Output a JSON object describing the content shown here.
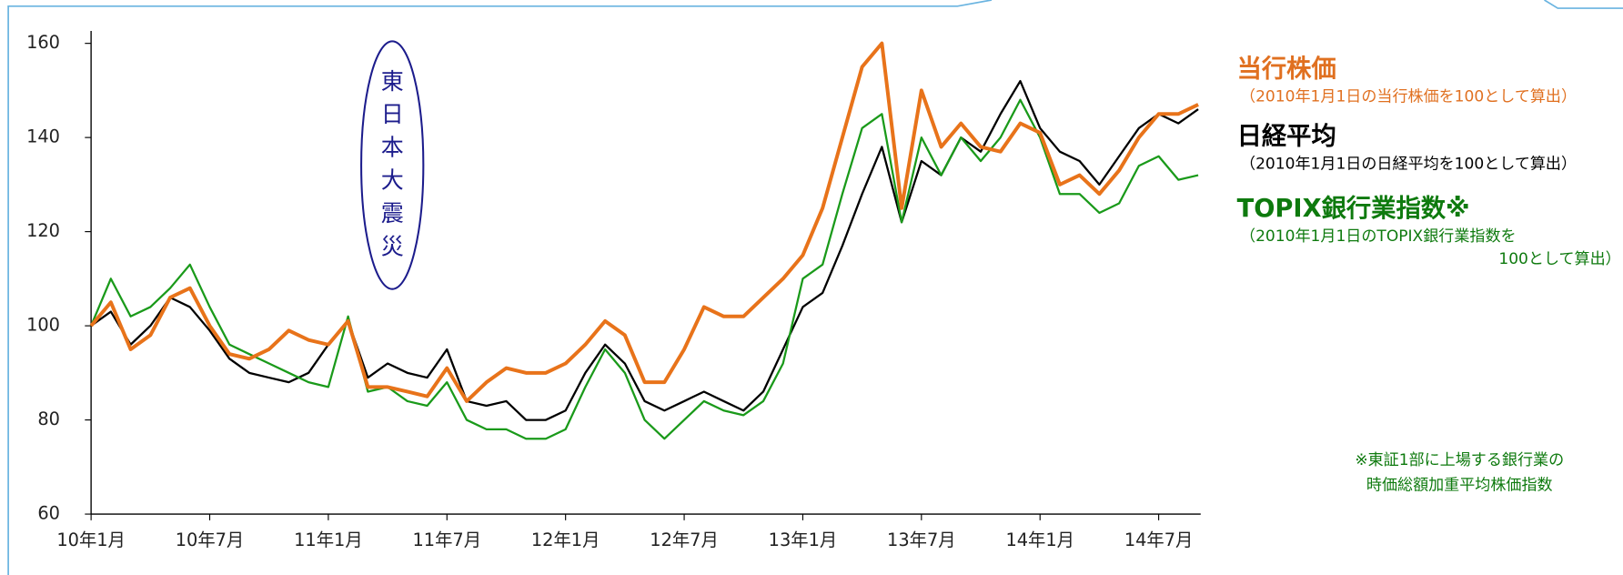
{
  "chart_data": {
    "type": "line",
    "categories": [
      "10年1月",
      null,
      null,
      null,
      null,
      null,
      "10年7月",
      null,
      null,
      null,
      null,
      null,
      "11年1月",
      null,
      null,
      null,
      null,
      null,
      "11年7月",
      null,
      null,
      null,
      null,
      null,
      "12年1月",
      null,
      null,
      null,
      null,
      null,
      "12年7月",
      null,
      null,
      null,
      null,
      null,
      "13年1月",
      null,
      null,
      null,
      null,
      null,
      "13年7月",
      null,
      null,
      null,
      null,
      null,
      "14年1月",
      null,
      null,
      null,
      null,
      null,
      "14年7月",
      null,
      null
    ],
    "ylim": [
      60,
      165
    ],
    "yticks": [
      60,
      80,
      100,
      120,
      140,
      160
    ],
    "series": [
      {
        "name": "当行株価",
        "color": "#e8731a",
        "note": [
          "（2010年1月1日の当行株価を100として算出）"
        ],
        "values": [
          100,
          105,
          95,
          98,
          106,
          108,
          100,
          94,
          93,
          95,
          99,
          97,
          96,
          101,
          87,
          87,
          86,
          85,
          91,
          84,
          88,
          91,
          90,
          90,
          92,
          96,
          101,
          98,
          88,
          88,
          95,
          104,
          102,
          102,
          106,
          110,
          115,
          125,
          140,
          155,
          160,
          125,
          150,
          138,
          143,
          138,
          137,
          143,
          141,
          130,
          132,
          128,
          133,
          140,
          145,
          145,
          147
        ]
      },
      {
        "name": "日経平均",
        "color": "#000000",
        "note": [
          "（2010年1月1日の日経平均を100として算出）"
        ],
        "values": [
          100,
          103,
          96,
          100,
          106,
          104,
          99,
          93,
          90,
          89,
          88,
          90,
          96,
          101,
          89,
          92,
          90,
          89,
          95,
          84,
          83,
          84,
          80,
          80,
          82,
          90,
          96,
          92,
          84,
          82,
          84,
          86,
          84,
          82,
          86,
          95,
          104,
          107,
          117,
          128,
          138,
          122,
          135,
          132,
          140,
          137,
          145,
          152,
          142,
          137,
          135,
          130,
          136,
          142,
          145,
          143,
          146
        ]
      },
      {
        "name": "TOPIX銀行業指数※",
        "color": "#1a9a1a",
        "note": [
          "（2010年1月1日のTOPIX銀行業指数を",
          "100として算出）"
        ],
        "values": [
          100,
          110,
          102,
          104,
          108,
          113,
          104,
          96,
          94,
          92,
          90,
          88,
          87,
          102,
          86,
          87,
          84,
          83,
          88,
          80,
          78,
          78,
          76,
          76,
          78,
          87,
          95,
          90,
          80,
          76,
          80,
          84,
          82,
          81,
          84,
          92,
          110,
          113,
          128,
          142,
          145,
          122,
          140,
          132,
          140,
          135,
          140,
          148,
          140,
          128,
          128,
          124,
          126,
          134,
          136,
          131,
          132
        ]
      }
    ],
    "annotation": "東日本大震災",
    "footnote": [
      "※東証1部に上場する銀行業の",
      "時価総額加重平均株価指数"
    ]
  }
}
